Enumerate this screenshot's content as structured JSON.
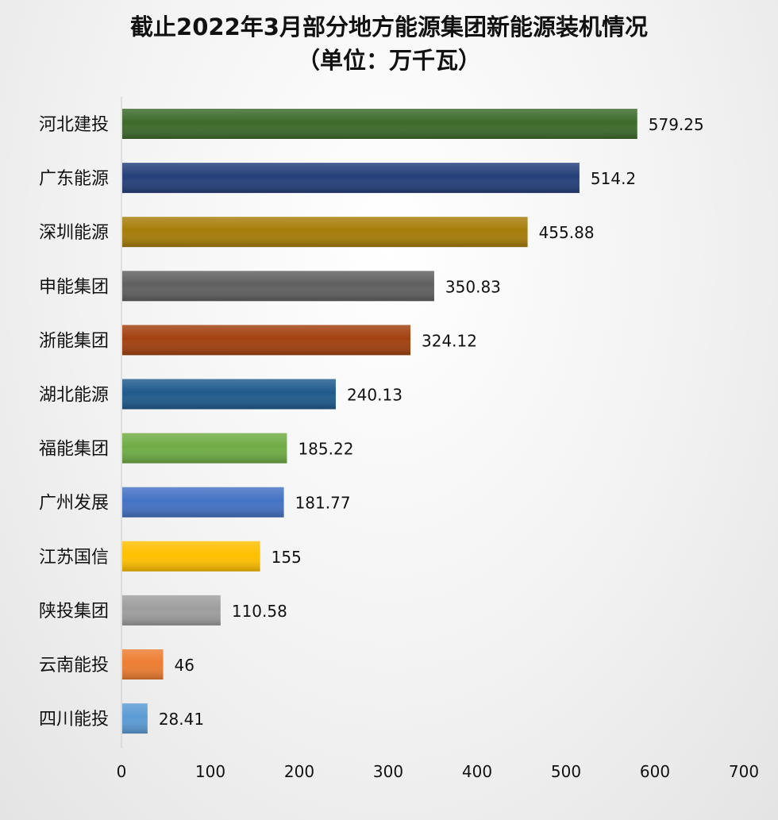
{
  "chart_data": {
    "type": "bar",
    "orientation": "horizontal",
    "title": "截止2022年3月部分地方能源集团新能源装机情况",
    "subtitle": "（单位：万千瓦）",
    "categories": [
      "河北建投",
      "广东能源",
      "深圳能源",
      "申能集团",
      "浙能集团",
      "湖北能源",
      "福能集团",
      "广州发展",
      "江苏国信",
      "陕投集团",
      "云南能投",
      "四川能投"
    ],
    "values": [
      579.25,
      514.2,
      455.88,
      350.83,
      324.12,
      240.13,
      185.22,
      181.77,
      155,
      110.58,
      46,
      28.41
    ],
    "value_labels": [
      "579.25",
      "514.2",
      "455.88",
      "350.83",
      "324.12",
      "240.13",
      "185.22",
      "181.77",
      "155",
      "110.58",
      "46",
      "28.41"
    ],
    "colors": [
      "#3d6b2b",
      "#243f7a",
      "#a77d09",
      "#606060",
      "#a3410f",
      "#1f5a8c",
      "#6fac45",
      "#4472c4",
      "#ffc000",
      "#9e9e9e",
      "#ed7d31",
      "#5b9bd5"
    ],
    "xlim": [
      0,
      700
    ],
    "xticks": [
      "0",
      "100",
      "200",
      "300",
      "400",
      "500",
      "600",
      "700"
    ],
    "grid": false,
    "legend": "none"
  }
}
